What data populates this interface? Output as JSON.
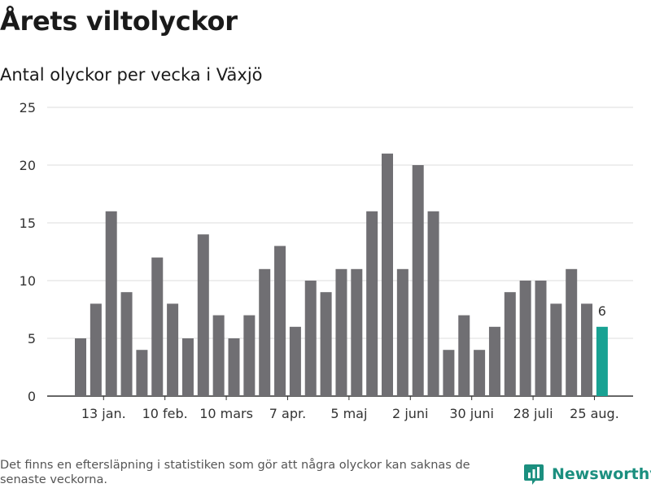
{
  "header": {
    "title": "Årets viltolyckor",
    "subtitle": "Antal olyckor per vecka i Växjö"
  },
  "footer": {
    "note": "Det finns en eftersläpning i statistiken som gör att några olyckor kan saknas de senaste veckorna.",
    "brand": "Newsworthy",
    "brand_color": "#1b8f7f"
  },
  "chart_data": {
    "type": "bar",
    "title": "Antal olyckor per vecka i Växjö",
    "xlabel": "",
    "ylabel": "",
    "ylim": [
      0,
      25
    ],
    "yticks": [
      0,
      5,
      10,
      15,
      20,
      25
    ],
    "grid": true,
    "values": [
      5,
      8,
      16,
      9,
      4,
      12,
      8,
      5,
      14,
      7,
      5,
      7,
      11,
      13,
      6,
      10,
      9,
      11,
      11,
      16,
      21,
      11,
      20,
      16,
      4,
      7,
      4,
      6,
      9,
      10,
      10,
      8,
      11,
      8,
      6
    ],
    "xtick_labels": [
      {
        "index": 1.5,
        "label": "13 jan."
      },
      {
        "index": 5.5,
        "label": "10 feb."
      },
      {
        "index": 9.5,
        "label": "10 mars"
      },
      {
        "index": 13.5,
        "label": "7 apr."
      },
      {
        "index": 17.5,
        "label": "5 maj"
      },
      {
        "index": 21.5,
        "label": "2 juni"
      },
      {
        "index": 25.5,
        "label": "30 juni"
      },
      {
        "index": 29.5,
        "label": "28 juli"
      },
      {
        "index": 33.5,
        "label": "25 aug."
      }
    ],
    "highlight_index": 34,
    "highlight_label": "6",
    "colors": {
      "bar": "#706f73",
      "highlight": "#18a293",
      "grid": "#dddddd",
      "axis": "#333333"
    }
  }
}
